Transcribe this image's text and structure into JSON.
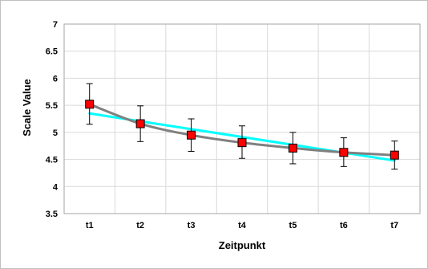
{
  "chart_data": {
    "type": "line",
    "title": "",
    "xlabel": "Zeitpunkt",
    "ylabel": "Scale Value",
    "categories": [
      "t1",
      "t2",
      "t3",
      "t4",
      "t5",
      "t6",
      "t7"
    ],
    "ylim": [
      3.5,
      7
    ],
    "yticks": [
      3.5,
      4,
      4.5,
      5,
      5.5,
      6,
      6.5,
      7
    ],
    "ytick_labels": [
      "3.5",
      "4",
      "4.5",
      "5",
      "5.5",
      "6",
      "6.5",
      "7"
    ],
    "grid": true,
    "series": [
      {
        "values": [
          5.52,
          5.16,
          4.95,
          4.81,
          4.71,
          4.63,
          4.58
        ],
        "error_low": [
          5.15,
          4.83,
          4.65,
          4.52,
          4.42,
          4.37,
          4.32
        ],
        "error_high": [
          5.9,
          5.49,
          5.25,
          5.12,
          5.0,
          4.9,
          4.84
        ],
        "marker": "square",
        "marker_color": "#ff0000",
        "line_style": "smooth-fit"
      },
      {
        "type": "linear-trend",
        "values": [
          5.35,
          5.2,
          5.06,
          4.91,
          4.77,
          4.62,
          4.48
        ],
        "color": "#00ffff"
      }
    ],
    "colors": {
      "marker": "#ff0000",
      "fit_curve": "#808080",
      "trend_line": "#00ffff",
      "error_bar": "#000000",
      "grid": "#d9d9d9",
      "border": "#c0c0c0"
    }
  }
}
